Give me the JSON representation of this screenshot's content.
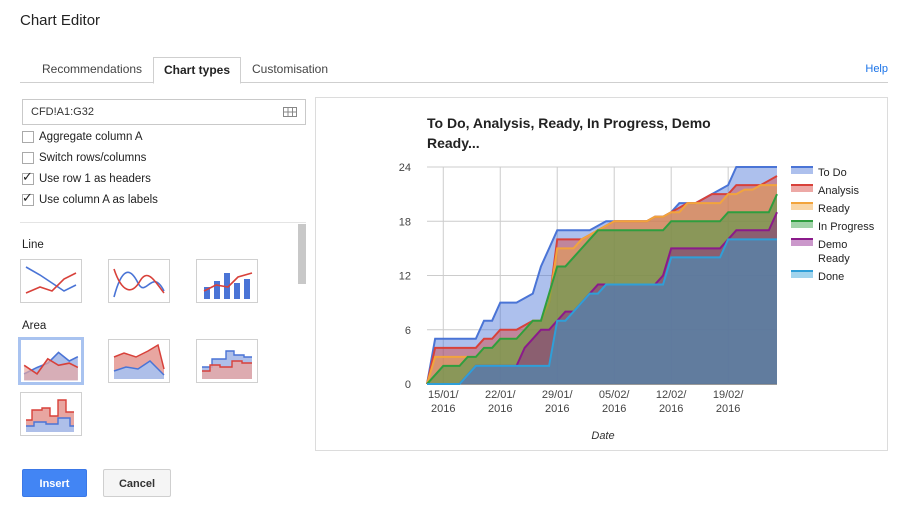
{
  "window": {
    "title": "Chart Editor"
  },
  "tabs": [
    {
      "label": "Recommendations",
      "active": false
    },
    {
      "label": "Chart types",
      "active": true
    },
    {
      "label": "Customisation",
      "active": false
    }
  ],
  "help_label": "Help",
  "data_range": {
    "value": "CFD!A1:G32",
    "icon": "grid-icon"
  },
  "options": [
    {
      "label": "Aggregate column A",
      "checked": false
    },
    {
      "label": "Switch rows/columns",
      "checked": false
    },
    {
      "label": "Use row 1 as headers",
      "checked": true
    },
    {
      "label": "Use column A as labels",
      "checked": true
    }
  ],
  "sections": {
    "line": {
      "label": "Line",
      "thumbnails": [
        "line-chart-thumbnail",
        "smooth-line-chart-thumbnail",
        "combo-chart-thumbnail"
      ]
    },
    "area": {
      "label": "Area",
      "thumbnails": [
        "area-chart-thumbnail",
        "stacked-area-chart-thumbnail",
        "stepped-area-chart-thumbnail",
        "stepped-area-alt-thumbnail"
      ],
      "selected_index": 0
    }
  },
  "buttons": {
    "insert": "Insert",
    "cancel": "Cancel"
  },
  "colors": {
    "accent": "#4285f4",
    "to_do": "#4a74d6",
    "analysis": "#d8413a",
    "ready": "#f2a43c",
    "in_progress": "#2f9e3f",
    "demo_ready": "#8b1a8b",
    "done": "#2f9fd8"
  },
  "chart_data": {
    "type": "area",
    "title_line1": "To Do, Analysis, Ready, In Progress, Demo",
    "title_line2": "Ready...",
    "xlabel": "Date",
    "ylabel": "",
    "ylim": [
      0,
      24
    ],
    "yticks": [
      "0",
      "6",
      "12",
      "18",
      "24"
    ],
    "xticks": [
      {
        "line1": "15/01/",
        "line2": "2016"
      },
      {
        "line1": "22/01/",
        "line2": "2016"
      },
      {
        "line1": "29/01/",
        "line2": "2016"
      },
      {
        "line1": "05/02/",
        "line2": "2016"
      },
      {
        "line1": "12/02/",
        "line2": "2016"
      },
      {
        "line1": "19/02/",
        "line2": "2016"
      }
    ],
    "x": [
      "13/01/2016",
      "14/01/2016",
      "15/01/2016",
      "16/01/2016",
      "17/01/2016",
      "18/01/2016",
      "19/01/2016",
      "20/01/2016",
      "21/01/2016",
      "22/01/2016",
      "23/01/2016",
      "24/01/2016",
      "25/01/2016",
      "26/01/2016",
      "27/01/2016",
      "28/01/2016",
      "29/01/2016",
      "30/01/2016",
      "31/01/2016",
      "01/02/2016",
      "02/02/2016",
      "03/02/2016",
      "04/02/2016",
      "05/02/2016",
      "06/02/2016",
      "07/02/2016",
      "08/02/2016",
      "09/02/2016",
      "10/02/2016",
      "11/02/2016",
      "12/02/2016",
      "13/02/2016",
      "14/02/2016",
      "15/02/2016",
      "16/02/2016",
      "17/02/2016",
      "18/02/2016",
      "19/02/2016",
      "20/02/2016",
      "21/02/2016",
      "22/02/2016",
      "23/02/2016",
      "24/02/2016",
      "25/02/2016"
    ],
    "legend": {
      "position": "right"
    },
    "grid": true,
    "series": [
      {
        "name": "To Do",
        "color": "#4a74d6",
        "values": [
          0,
          5,
          5,
          5,
          5,
          5,
          5,
          7,
          7,
          9,
          9,
          9,
          9.5,
          10,
          13,
          15,
          17,
          17,
          17,
          17,
          17,
          17.5,
          18,
          18,
          18,
          18,
          18,
          18,
          18.5,
          18.5,
          19,
          20,
          20,
          20,
          20.5,
          21,
          21.5,
          22,
          24,
          24,
          24,
          24,
          24,
          24
        ]
      },
      {
        "name": "Analysis",
        "color": "#d8413a",
        "values": [
          0,
          4,
          4,
          4,
          4,
          4,
          4,
          5,
          5,
          6,
          6,
          6,
          6.5,
          7,
          7,
          9,
          16,
          16,
          16,
          16,
          16.5,
          17,
          17.5,
          18,
          18,
          18,
          18,
          18,
          18.5,
          18.5,
          19,
          19.5,
          20,
          20,
          20.5,
          21,
          21,
          21,
          22,
          22,
          22,
          22,
          22.5,
          23
        ]
      },
      {
        "name": "Ready",
        "color": "#f2a43c",
        "values": [
          0,
          3,
          3,
          3,
          3,
          3,
          3,
          4,
          4,
          5,
          5,
          5,
          6,
          7,
          7,
          9,
          15,
          15,
          15,
          16,
          16.5,
          17,
          17.5,
          18,
          18,
          18,
          18,
          18,
          18.5,
          18.5,
          19,
          19,
          20,
          20,
          20,
          20,
          20,
          21,
          21,
          21.5,
          21.5,
          22,
          22,
          22
        ]
      },
      {
        "name": "In Progress",
        "color": "#2f9e3f",
        "values": [
          0,
          1,
          2,
          2,
          2,
          3,
          3,
          4,
          4,
          5,
          5,
          5,
          6,
          7,
          7,
          10,
          13,
          13,
          14,
          15,
          16,
          17,
          17,
          17,
          17,
          17,
          17,
          17,
          17,
          17,
          18,
          18,
          18,
          18,
          18,
          18,
          18,
          19,
          19,
          19,
          19,
          19,
          19,
          21
        ]
      },
      {
        "name": "Demo Ready",
        "color": "#8b1a8b",
        "values": [
          0,
          0,
          0,
          0,
          0,
          1,
          2,
          2,
          2,
          2,
          2,
          2,
          4,
          5,
          6,
          6,
          7,
          8,
          8,
          9,
          10,
          11,
          11,
          11,
          11,
          11,
          11,
          11,
          11,
          12,
          15,
          15,
          15,
          15,
          15,
          15,
          15,
          16,
          17,
          17,
          17,
          17,
          17,
          19
        ]
      },
      {
        "name": "Done",
        "color": "#2f9fd8",
        "values": [
          0,
          0,
          0,
          0,
          0,
          1,
          2,
          2,
          2,
          2,
          2,
          2,
          2,
          2,
          2,
          2,
          7,
          7,
          8,
          9,
          10,
          10,
          11,
          11,
          11,
          11,
          11,
          11,
          11,
          11,
          14,
          14,
          14,
          14,
          14,
          14,
          14,
          16,
          16,
          16,
          16,
          16,
          16,
          16
        ]
      }
    ]
  }
}
